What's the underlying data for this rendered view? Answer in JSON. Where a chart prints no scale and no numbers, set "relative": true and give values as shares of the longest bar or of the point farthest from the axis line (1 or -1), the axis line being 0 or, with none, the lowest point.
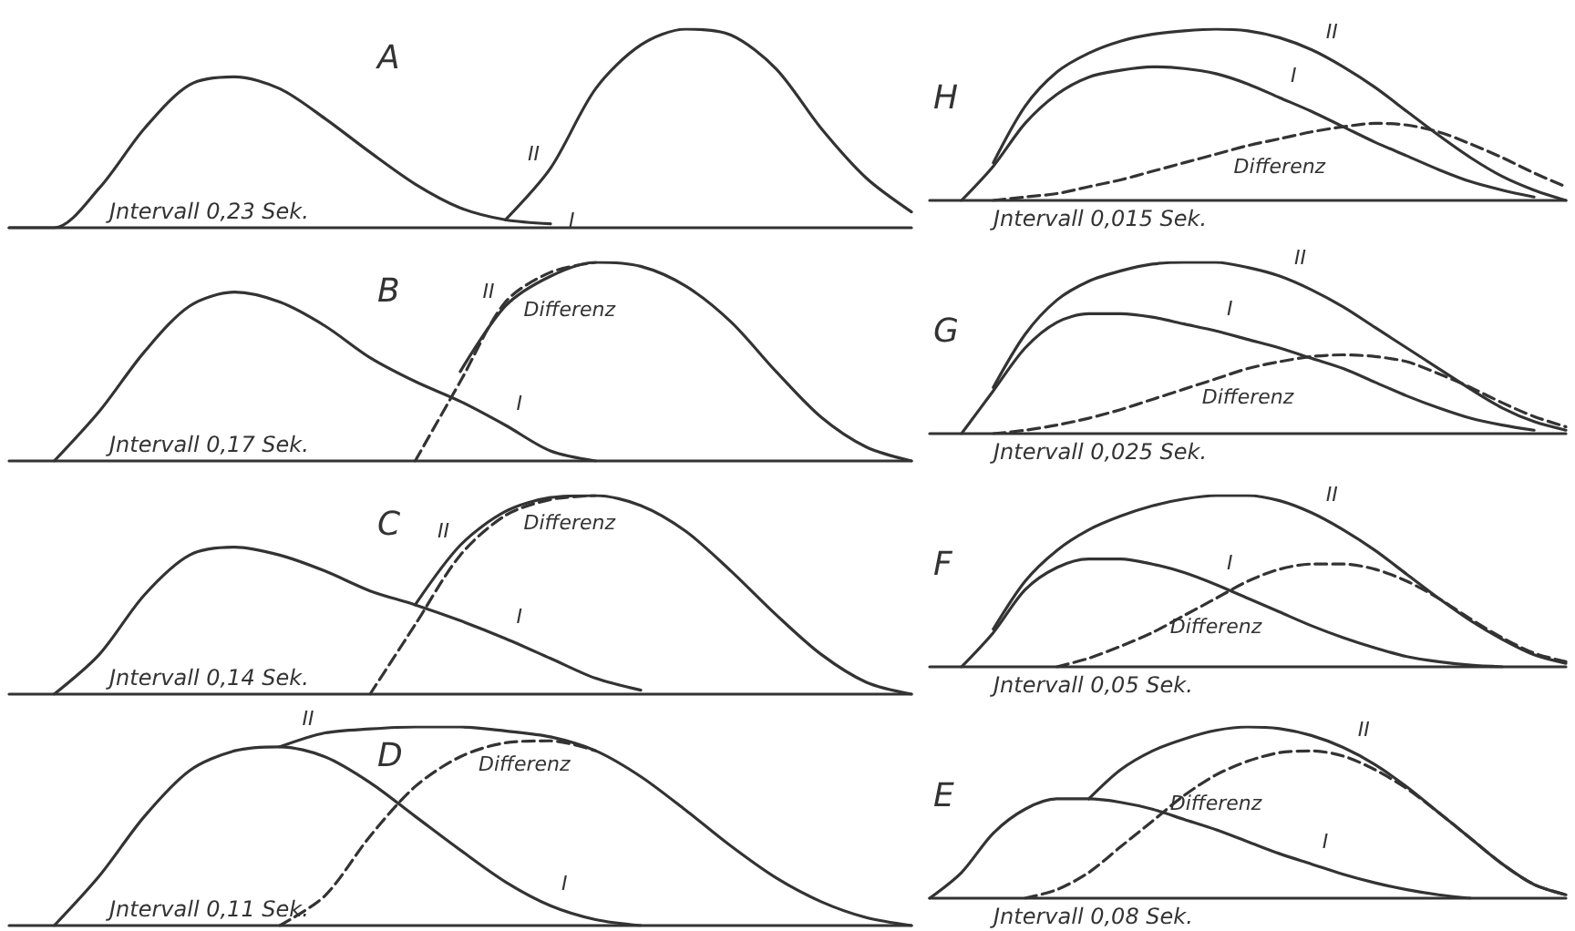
{
  "chart_data": [
    {
      "type": "line",
      "title": "A",
      "relative": true,
      "annotations": [
        "Jntervall 0,23 Sek."
      ],
      "categories": [
        null,
        null,
        null,
        null,
        null,
        null,
        null,
        null,
        null,
        null,
        null,
        null,
        null,
        null,
        null,
        null,
        null,
        null,
        null,
        null,
        null
      ],
      "series": [
        {
          "name": "I",
          "color": "#333333",
          "values": [
            0,
            0,
            0.2,
            0.5,
            0.72,
            0.76,
            0.7,
            0.55,
            0.38,
            0.22,
            0.1,
            0.04,
            0.02,
            null,
            null,
            null,
            null,
            null,
            null,
            null,
            null
          ]
        },
        {
          "name": "II",
          "color": "#333333",
          "values": [
            null,
            null,
            null,
            null,
            null,
            null,
            null,
            null,
            null,
            null,
            null,
            0.04,
            0.3,
            0.7,
            0.92,
            1,
            0.97,
            0.8,
            0.5,
            0.25,
            0.08
          ]
        }
      ]
    },
    {
      "type": "line",
      "title": "H",
      "relative": true,
      "annotations": [
        "Jntervall 0,015 Sek."
      ],
      "categories": [
        null,
        null,
        null,
        null,
        null,
        null,
        null,
        null,
        null,
        null,
        null,
        null,
        null,
        null,
        null,
        null,
        null,
        null,
        null,
        null,
        null
      ],
      "series": [
        {
          "name": "I",
          "color": "#333333",
          "values": [
            null,
            0,
            0.2,
            0.45,
            0.62,
            0.72,
            0.76,
            0.78,
            0.77,
            0.74,
            0.68,
            0.6,
            0.52,
            0.43,
            0.34,
            0.26,
            0.18,
            0.11,
            0.06,
            0.02,
            null
          ]
        },
        {
          "name": "II",
          "color": "#333333",
          "values": [
            null,
            null,
            0.22,
            0.55,
            0.75,
            0.86,
            0.93,
            0.97,
            0.99,
            1,
            0.99,
            0.95,
            0.88,
            0.78,
            0.66,
            0.52,
            0.38,
            0.25,
            0.14,
            0.06,
            0
          ]
        },
        {
          "name": "Differenz",
          "color": "#333333",
          "line_style": "dashed",
          "values": [
            null,
            null,
            0,
            0.02,
            0.04,
            0.08,
            0.12,
            0.17,
            0.22,
            0.27,
            0.32,
            0.36,
            0.4,
            0.43,
            0.45,
            0.44,
            0.4,
            0.33,
            0.25,
            0.16,
            0.08
          ]
        }
      ]
    },
    {
      "type": "line",
      "title": "B",
      "relative": true,
      "annotations": [
        "Jntervall 0,17 Sek."
      ],
      "categories": [
        null,
        null,
        null,
        null,
        null,
        null,
        null,
        null,
        null,
        null,
        null,
        null,
        null,
        null,
        null,
        null,
        null,
        null,
        null,
        null,
        null
      ],
      "series": [
        {
          "name": "I",
          "color": "#333333",
          "values": [
            null,
            0,
            0.25,
            0.55,
            0.78,
            0.85,
            0.8,
            0.68,
            0.52,
            0.4,
            0.3,
            0.18,
            0.05,
            0,
            null,
            null,
            null,
            null,
            null,
            null,
            null
          ]
        },
        {
          "name": "II",
          "color": "#333333",
          "values": [
            null,
            null,
            null,
            null,
            null,
            null,
            null,
            null,
            null,
            null,
            0.45,
            0.78,
            0.93,
            1,
            0.98,
            0.88,
            0.7,
            0.45,
            0.22,
            0.07,
            0
          ]
        },
        {
          "name": "Differenz",
          "color": "#333333",
          "line_style": "dashed",
          "values": [
            null,
            null,
            null,
            null,
            null,
            null,
            null,
            null,
            null,
            0,
            0.4,
            0.8,
            0.95,
            1,
            null,
            null,
            null,
            null,
            null,
            null,
            null
          ]
        }
      ]
    },
    {
      "type": "line",
      "title": "G",
      "relative": true,
      "annotations": [
        "Jntervall 0,025 Sek."
      ],
      "categories": [
        null,
        null,
        null,
        null,
        null,
        null,
        null,
        null,
        null,
        null,
        null,
        null,
        null,
        null,
        null,
        null,
        null,
        null,
        null,
        null,
        null
      ],
      "series": [
        {
          "name": "I",
          "color": "#333333",
          "values": [
            null,
            0,
            0.25,
            0.5,
            0.65,
            0.7,
            0.7,
            0.68,
            0.64,
            0.6,
            0.55,
            0.5,
            0.44,
            0.38,
            0.3,
            0.22,
            0.15,
            0.09,
            0.05,
            0.02,
            null
          ]
        },
        {
          "name": "II",
          "color": "#333333",
          "values": [
            null,
            null,
            0.27,
            0.58,
            0.78,
            0.89,
            0.95,
            0.99,
            1,
            1,
            0.97,
            0.92,
            0.84,
            0.74,
            0.62,
            0.5,
            0.38,
            0.26,
            0.15,
            0.07,
            0.02
          ]
        },
        {
          "name": "Differenz",
          "color": "#333333",
          "line_style": "dashed",
          "values": [
            null,
            null,
            0,
            0.02,
            0.05,
            0.09,
            0.14,
            0.2,
            0.26,
            0.32,
            0.38,
            0.42,
            0.45,
            0.46,
            0.45,
            0.42,
            0.35,
            0.27,
            0.18,
            0.1,
            0.04
          ]
        }
      ]
    },
    {
      "type": "line",
      "title": "C",
      "relative": true,
      "annotations": [
        "Jntervall 0,14 Sek."
      ],
      "categories": [
        null,
        null,
        null,
        null,
        null,
        null,
        null,
        null,
        null,
        null,
        null,
        null,
        null,
        null,
        null,
        null,
        null,
        null,
        null,
        null,
        null
      ],
      "series": [
        {
          "name": "I",
          "color": "#333333",
          "values": [
            null,
            0,
            0.2,
            0.5,
            0.7,
            0.74,
            0.7,
            0.62,
            0.52,
            0.45,
            0.37,
            0.28,
            0.18,
            0.08,
            0.02,
            null,
            null,
            null,
            null,
            null,
            null
          ]
        },
        {
          "name": "II",
          "color": "#333333",
          "values": [
            null,
            null,
            null,
            null,
            null,
            null,
            null,
            null,
            null,
            0.45,
            0.75,
            0.92,
            0.99,
            1,
            0.95,
            0.82,
            0.62,
            0.4,
            0.2,
            0.06,
            0
          ]
        },
        {
          "name": "Differenz",
          "color": "#333333",
          "line_style": "dashed",
          "values": [
            null,
            null,
            null,
            null,
            null,
            null,
            null,
            null,
            0,
            0.35,
            0.7,
            0.9,
            0.98,
            1,
            null,
            null,
            null,
            null,
            null,
            null,
            null
          ]
        }
      ]
    },
    {
      "type": "line",
      "title": "F",
      "relative": true,
      "annotations": [
        "Jntervall 0,05 Sek."
      ],
      "categories": [
        null,
        null,
        null,
        null,
        null,
        null,
        null,
        null,
        null,
        null,
        null,
        null,
        null,
        null,
        null,
        null,
        null,
        null,
        null,
        null,
        null
      ],
      "series": [
        {
          "name": "I",
          "color": "#333333",
          "values": [
            null,
            0,
            0.2,
            0.45,
            0.58,
            0.63,
            0.63,
            0.6,
            0.55,
            0.48,
            0.4,
            0.32,
            0.24,
            0.17,
            0.11,
            0.06,
            0.03,
            0.01,
            0,
            null,
            null
          ]
        },
        {
          "name": "II",
          "color": "#333333",
          "values": [
            null,
            null,
            0.22,
            0.5,
            0.68,
            0.8,
            0.88,
            0.94,
            0.98,
            1,
            1,
            0.97,
            0.9,
            0.8,
            0.68,
            0.54,
            0.4,
            0.27,
            0.16,
            0.07,
            0.02
          ]
        },
        {
          "name": "Differenz",
          "color": "#333333",
          "line_style": "dashed",
          "values": [
            null,
            null,
            null,
            null,
            0,
            0.05,
            0.12,
            0.2,
            0.3,
            0.4,
            0.5,
            0.57,
            0.6,
            0.6,
            0.57,
            0.5,
            0.4,
            0.28,
            0.17,
            0.08,
            0.03
          ]
        }
      ]
    },
    {
      "type": "line",
      "title": "D",
      "relative": true,
      "annotations": [
        "Jntervall 0,11 Sek."
      ],
      "categories": [
        null,
        null,
        null,
        null,
        null,
        null,
        null,
        null,
        null,
        null,
        null,
        null,
        null,
        null,
        null,
        null,
        null,
        null,
        null,
        null,
        null
      ],
      "series": [
        {
          "name": "I",
          "color": "#333333",
          "values": [
            null,
            0,
            0.25,
            0.55,
            0.78,
            0.88,
            0.9,
            0.85,
            0.72,
            0.55,
            0.38,
            0.22,
            0.1,
            0.03,
            0,
            null,
            null,
            null,
            null,
            null,
            null
          ]
        },
        {
          "name": "II",
          "color": "#333333",
          "values": [
            null,
            null,
            null,
            null,
            null,
            null,
            0.9,
            0.97,
            0.99,
            1,
            1,
            0.98,
            0.95,
            0.88,
            0.75,
            0.58,
            0.4,
            0.24,
            0.12,
            0.04,
            0
          ]
        },
        {
          "name": "Differenz",
          "color": "#333333",
          "line_style": "dashed",
          "values": [
            null,
            null,
            null,
            null,
            null,
            null,
            0,
            0.15,
            0.45,
            0.7,
            0.85,
            0.92,
            0.93,
            0.88,
            null,
            null,
            null,
            null,
            null,
            null,
            null
          ]
        }
      ]
    },
    {
      "type": "line",
      "title": "E",
      "relative": true,
      "annotations": [
        "Jntervall 0,08 Sek."
      ],
      "categories": [
        null,
        null,
        null,
        null,
        null,
        null,
        null,
        null,
        null,
        null,
        null,
        null,
        null,
        null,
        null,
        null,
        null,
        null,
        null,
        null,
        null
      ],
      "series": [
        {
          "name": "I",
          "color": "#333333",
          "values": [
            0,
            0.15,
            0.38,
            0.52,
            0.58,
            0.58,
            0.56,
            0.52,
            0.46,
            0.4,
            0.33,
            0.26,
            0.2,
            0.14,
            0.09,
            0.05,
            0.02,
            0,
            null,
            null,
            null
          ]
        },
        {
          "name": "II",
          "color": "#333333",
          "values": [
            null,
            null,
            null,
            null,
            null,
            0.58,
            0.75,
            0.86,
            0.93,
            0.98,
            1,
            0.99,
            0.95,
            0.88,
            0.78,
            0.65,
            0.5,
            0.35,
            0.2,
            0.08,
            0.02
          ]
        },
        {
          "name": "Differenz",
          "color": "#333333",
          "line_style": "dashed",
          "values": [
            null,
            null,
            null,
            0,
            0.05,
            0.15,
            0.3,
            0.45,
            0.6,
            0.72,
            0.8,
            0.85,
            0.86,
            0.83,
            0.75,
            0.64,
            0.5,
            0.35,
            0.2,
            0.08,
            0.02
          ]
        }
      ]
    }
  ]
}
